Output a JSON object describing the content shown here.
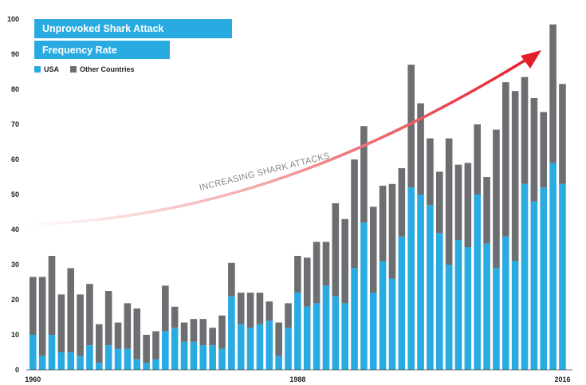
{
  "chart_data": {
    "type": "bar",
    "stacked": true,
    "title": "Unprovoked Shark Attack",
    "subtitle": "Frequency Rate",
    "annotation": "INCREASING SHARK ATTACKS",
    "x": [
      1960,
      1961,
      1962,
      1963,
      1964,
      1965,
      1966,
      1967,
      1968,
      1969,
      1970,
      1971,
      1972,
      1973,
      1974,
      1975,
      1976,
      1977,
      1978,
      1979,
      1980,
      1981,
      1982,
      1983,
      1984,
      1985,
      1986,
      1987,
      1988,
      1989,
      1990,
      1991,
      1992,
      1993,
      1994,
      1995,
      1996,
      1997,
      1998,
      1999,
      2000,
      2001,
      2002,
      2003,
      2004,
      2005,
      2006,
      2007,
      2008,
      2009,
      2010,
      2011,
      2012,
      2013,
      2014,
      2015,
      2016
    ],
    "x_ticks": [
      "1960",
      "1988",
      "2016"
    ],
    "y_ticks": [
      0,
      10,
      20,
      30,
      40,
      50,
      60,
      70,
      80,
      90,
      100
    ],
    "ylim": [
      0,
      100
    ],
    "grid": false,
    "legend_position": "top-left",
    "series": [
      {
        "name": "USA",
        "color": "#29abe2",
        "values": [
          10,
          4,
          10,
          5,
          5,
          4,
          7,
          2,
          7,
          6,
          6,
          3,
          2,
          3,
          11,
          12,
          8,
          8,
          7,
          7,
          6,
          21,
          13,
          12,
          13,
          14,
          4,
          12,
          22,
          18,
          19,
          24,
          21,
          19,
          29,
          42,
          22,
          31,
          26,
          38,
          52,
          50,
          47,
          39,
          30,
          37,
          35,
          50,
          36,
          29,
          38,
          31,
          53,
          48,
          52,
          59,
          53
        ]
      },
      {
        "name": "Other Countries",
        "color": "#6d6e71",
        "values": [
          16.5,
          22.5,
          22.5,
          16.5,
          24,
          17.5,
          17.5,
          11,
          15.5,
          7.5,
          13,
          14.5,
          8,
          8,
          13,
          6,
          5.5,
          6.5,
          7.5,
          5,
          9.5,
          9.5,
          9,
          10,
          9,
          5.5,
          9.5,
          7,
          10.5,
          14,
          17.5,
          12.5,
          26.5,
          24,
          31,
          27.5,
          24.5,
          21.5,
          27,
          19.5,
          35,
          26,
          19,
          17.5,
          36,
          21.5,
          24,
          20,
          19,
          39.5,
          44,
          48.5,
          30.5,
          29.5,
          21.5,
          39.5,
          28.5
        ]
      }
    ]
  }
}
